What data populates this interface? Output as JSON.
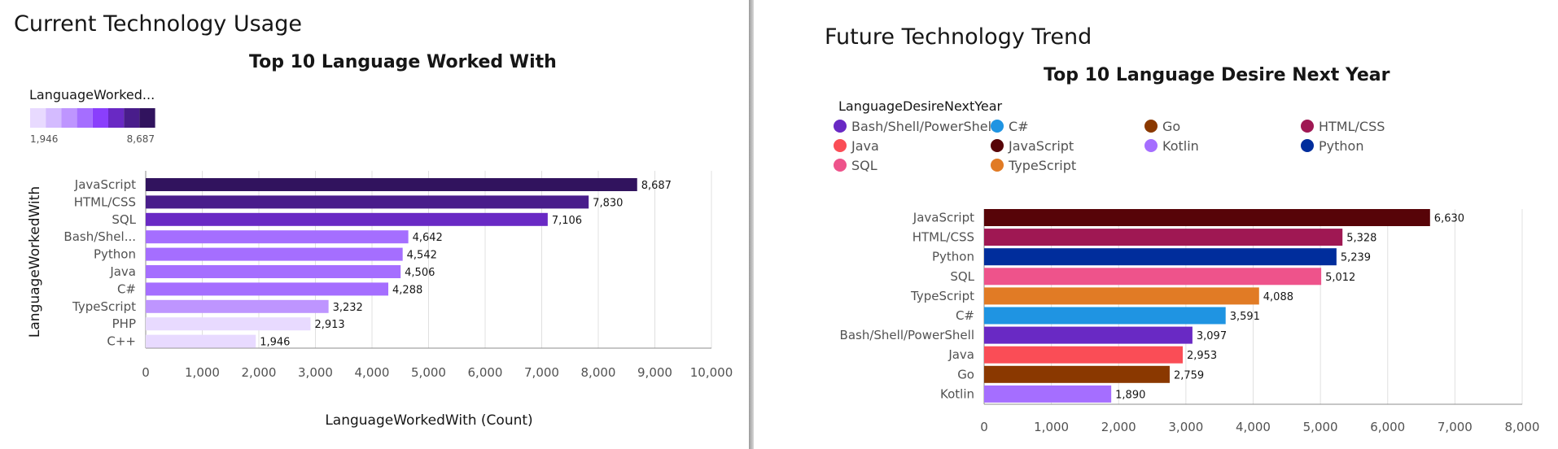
{
  "left": {
    "section_title": "Current Technology Usage",
    "chart_data": {
      "type": "bar",
      "orientation": "horizontal",
      "title": "Top 10 Language Worked With",
      "xlabel": "LanguageWorkedWith (Count)",
      "ylabel": "LanguageWorkedWith",
      "xlim": [
        0,
        10000
      ],
      "x_ticks": [
        "0",
        "1,000",
        "2,000",
        "3,000",
        "4,000",
        "5,000",
        "6,000",
        "7,000",
        "8,000",
        "9,000",
        "10,000"
      ],
      "categories": [
        "JavaScript",
        "HTML/CSS",
        "SQL",
        "Bash/Shel...",
        "Python",
        "Java",
        "C#",
        "TypeScript",
        "PHP",
        "C++"
      ],
      "values": [
        8687,
        7830,
        7106,
        4642,
        4542,
        4506,
        4288,
        3232,
        2913,
        1946
      ],
      "value_labels": [
        "8,687",
        "7,830",
        "7,106",
        "4,642",
        "4,542",
        "4,506",
        "4,288",
        "3,232",
        "2,913",
        "1,946"
      ],
      "grid": true,
      "legend": {
        "title": "LanguageWorked...",
        "type": "color-scale",
        "min_label": "1,946",
        "max_label": "8,687",
        "min": 1946,
        "max": 8687,
        "swatches": [
          "#e8daff",
          "#d4bbff",
          "#be95ff",
          "#a56eff",
          "#8a3ffc",
          "#6929c4",
          "#491d8b",
          "#31135e"
        ],
        "placement": "top-left"
      },
      "bar_colors": [
        "#31135e",
        "#491d8b",
        "#6929c4",
        "#a56eff",
        "#a56eff",
        "#a56eff",
        "#a56eff",
        "#be95ff",
        "#e8daff",
        "#e8daff"
      ]
    }
  },
  "right": {
    "section_title": "Future Technology Trend",
    "chart_data": {
      "type": "bar",
      "orientation": "horizontal",
      "title": "Top 10 Language Desire Next Year",
      "xlabel": "",
      "ylabel": "",
      "xlim": [
        0,
        8000
      ],
      "x_ticks": [
        "0",
        "1,000",
        "2,000",
        "3,000",
        "4,000",
        "5,000",
        "6,000",
        "7,000",
        "8,000"
      ],
      "categories": [
        "JavaScript",
        "HTML/CSS",
        "Python",
        "SQL",
        "TypeScript",
        "C#",
        "Bash/Shell/PowerShell",
        "Java",
        "Go",
        "Kotlin"
      ],
      "values": [
        6630,
        5328,
        5239,
        5012,
        4088,
        3591,
        3097,
        2953,
        2759,
        1890
      ],
      "value_labels": [
        "6,630",
        "5,328",
        "5,239",
        "5,012",
        "4,088",
        "3,591",
        "3,097",
        "2,953",
        "2,759",
        "1,890"
      ],
      "bar_colors": [
        "#570408",
        "#9f1853",
        "#002d9c",
        "#ee538b",
        "#e17b25",
        "#1f94e2",
        "#6929c4",
        "#fa4d56",
        "#8a3800",
        "#a56eff"
      ],
      "grid": true,
      "legend": {
        "title": "LanguageDesireNextYear",
        "placement": "top-left",
        "items": [
          {
            "label": "Bash/Shell/PowerShell",
            "color": "#6929c4"
          },
          {
            "label": "C#",
            "color": "#1f94e2"
          },
          {
            "label": "Go",
            "color": "#8a3800"
          },
          {
            "label": "HTML/CSS",
            "color": "#9f1853"
          },
          {
            "label": "Java",
            "color": "#fa4d56"
          },
          {
            "label": "JavaScript",
            "color": "#570408"
          },
          {
            "label": "Kotlin",
            "color": "#a56eff"
          },
          {
            "label": "Python",
            "color": "#002d9c"
          },
          {
            "label": "SQL",
            "color": "#ee538b"
          },
          {
            "label": "TypeScript",
            "color": "#e17b25"
          }
        ]
      }
    }
  }
}
